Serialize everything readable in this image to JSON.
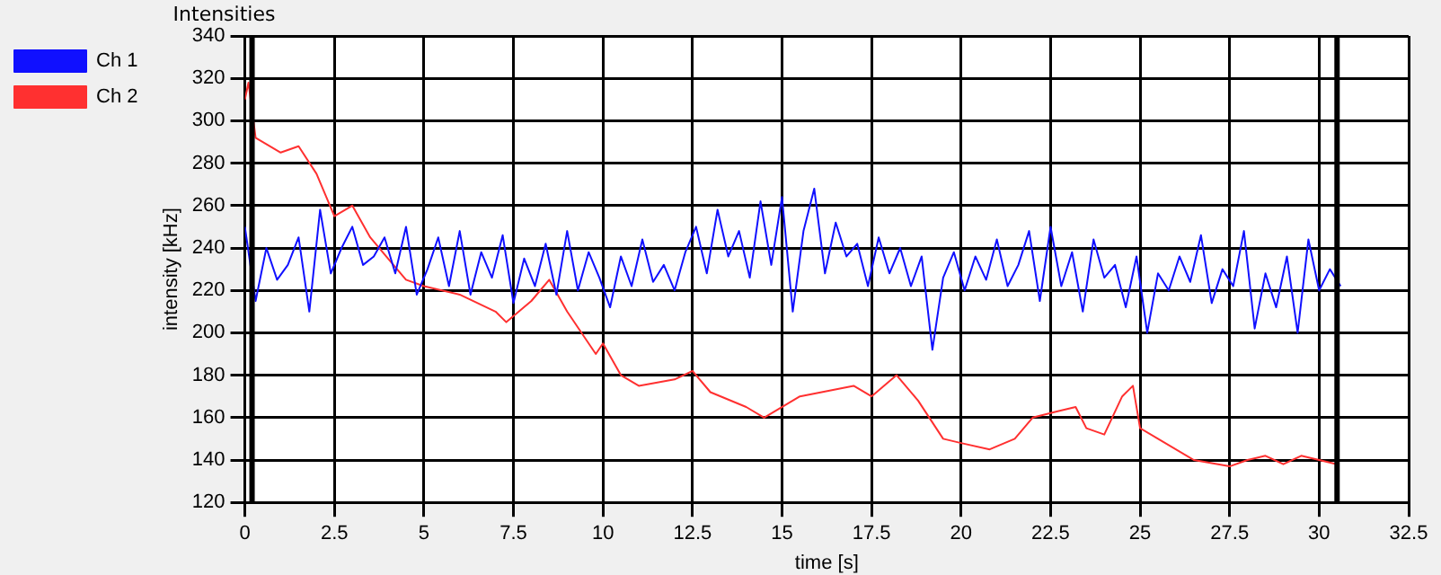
{
  "chart_data": {
    "type": "line",
    "title": "Intensities",
    "xlabel": "time [s]",
    "ylabel": "intensity [kHz]",
    "xlim": [
      0,
      32.5
    ],
    "xticks": [
      0,
      2.5,
      5,
      7.5,
      10,
      12.5,
      15,
      17.5,
      20,
      22.5,
      25,
      27.5,
      30,
      32.5
    ],
    "ylim": [
      120,
      340
    ],
    "yticks": [
      120,
      140,
      160,
      180,
      200,
      220,
      240,
      260,
      280,
      300,
      320,
      340
    ],
    "grid": true,
    "legend": "top left",
    "marker": "none",
    "line_style": "solid",
    "ref_lines": [
      {
        "axis": "x",
        "value": 0.2,
        "color": "#000000"
      },
      {
        "axis": "x",
        "value": 30.5,
        "color": "#000000"
      }
    ],
    "series": [
      {
        "name": "Ch 1",
        "color": "#1010ff",
        "x": [
          0,
          0.3,
          0.6,
          0.9,
          1.2,
          1.5,
          1.8,
          2.1,
          2.4,
          2.7,
          3,
          3.3,
          3.6,
          3.9,
          4.2,
          4.5,
          4.8,
          5.1,
          5.4,
          5.7,
          6,
          6.3,
          6.6,
          6.9,
          7.2,
          7.5,
          7.8,
          8.1,
          8.4,
          8.7,
          9,
          9.3,
          9.6,
          9.9,
          10.2,
          10.5,
          10.8,
          11.1,
          11.4,
          11.7,
          12,
          12.3,
          12.6,
          12.9,
          13.2,
          13.5,
          13.8,
          14.1,
          14.4,
          14.7,
          15,
          15.3,
          15.6,
          15.9,
          16.2,
          16.5,
          16.8,
          17.1,
          17.4,
          17.7,
          18,
          18.3,
          18.6,
          18.9,
          19.2,
          19.5,
          19.8,
          20.1,
          20.4,
          20.7,
          21,
          21.3,
          21.6,
          21.9,
          22.2,
          22.5,
          22.8,
          23.1,
          23.4,
          23.7,
          24,
          24.3,
          24.6,
          24.9,
          25.2,
          25.5,
          25.8,
          26.1,
          26.4,
          26.7,
          27,
          27.3,
          27.6,
          27.9,
          28.2,
          28.5,
          28.8,
          29.1,
          29.4,
          29.7,
          30,
          30.3,
          30.6
        ],
        "values": [
          250,
          215,
          240,
          225,
          232,
          245,
          210,
          258,
          228,
          240,
          250,
          232,
          236,
          245,
          228,
          250,
          218,
          230,
          245,
          222,
          248,
          218,
          238,
          226,
          246,
          214,
          235,
          222,
          242,
          218,
          248,
          220,
          238,
          226,
          212,
          236,
          222,
          244,
          224,
          232,
          220,
          238,
          250,
          228,
          258,
          236,
          248,
          226,
          262,
          232,
          264,
          210,
          248,
          268,
          228,
          252,
          236,
          242,
          222,
          245,
          228,
          240,
          222,
          236,
          192,
          226,
          238,
          220,
          236,
          225,
          244,
          222,
          232,
          248,
          215,
          250,
          222,
          238,
          210,
          244,
          226,
          232,
          212,
          236,
          200,
          228,
          220,
          236,
          224,
          246,
          214,
          230,
          222,
          248,
          202,
          228,
          212,
          236,
          200,
          244,
          220,
          230,
          222
        ]
      },
      {
        "name": "Ch 2",
        "color": "#ff3030",
        "x": [
          0,
          0.1,
          0.3,
          1,
          1.5,
          2,
          2.5,
          3,
          3.5,
          4,
          4.5,
          5,
          6,
          7,
          7.3,
          8,
          8.5,
          9,
          9.8,
          10,
          10.5,
          11,
          12,
          12.5,
          13,
          14,
          14.5,
          15.5,
          17,
          17.5,
          18.2,
          18.8,
          19.5,
          20,
          20.8,
          21.5,
          22,
          22.7,
          23.2,
          23.5,
          24,
          24.5,
          24.8,
          25,
          25.5,
          26.5,
          27.5,
          28,
          28.5,
          29,
          29.5,
          30,
          30.5
        ],
        "values": [
          310,
          318,
          292,
          285,
          288,
          275,
          255,
          260,
          245,
          235,
          225,
          222,
          218,
          210,
          205,
          215,
          225,
          210,
          190,
          195,
          180,
          175,
          178,
          182,
          172,
          165,
          160,
          170,
          175,
          170,
          180,
          168,
          150,
          148,
          145,
          150,
          160,
          163,
          165,
          155,
          152,
          170,
          175,
          155,
          150,
          140,
          137,
          140,
          142,
          138,
          142,
          140,
          138
        ]
      }
    ]
  }
}
